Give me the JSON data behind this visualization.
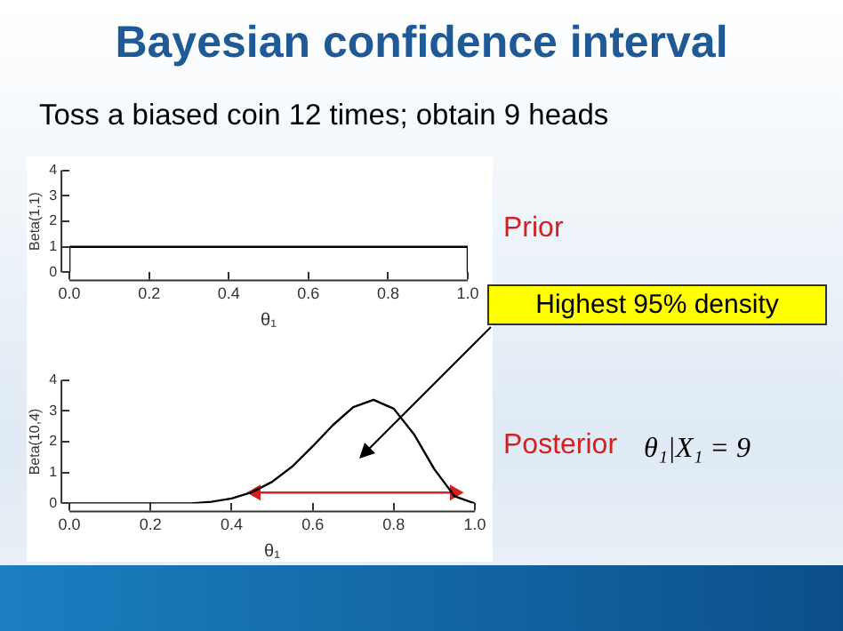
{
  "chart_data": [
    {
      "type": "line",
      "title": "Bayesian confidence interval",
      "subtitle": "Toss a biased coin 12 times; obtain 9 heads",
      "xlabel": "θ₁",
      "ylabel": "Beta(1,1)",
      "series": [
        {
          "color": "#000000",
          "x": [
            0,
            0,
            1,
            1
          ],
          "values": [
            0,
            1,
            1,
            0
          ]
        }
      ],
      "xlim": [
        0,
        1
      ],
      "xticks": [
        {
          "value": 0,
          "label": "0.0"
        },
        {
          "value": 0.2,
          "label": "0.2"
        },
        {
          "value": 0.4,
          "label": "0.4"
        },
        {
          "value": 0.6,
          "label": "0.6"
        },
        {
          "value": 0.8,
          "label": "0.8"
        },
        {
          "value": 1,
          "label": "1.0"
        }
      ],
      "ylim": [
        0,
        4
      ],
      "yticks": [
        0,
        1,
        2,
        3,
        4
      ],
      "grid": false,
      "legend": false,
      "annotations": [
        "Prior"
      ]
    },
    {
      "type": "line",
      "xlabel": "θ₁",
      "ylabel": "Beta(10,4)",
      "series": [
        {
          "color": "#000000",
          "x": [
            0,
            0.3,
            0.35,
            0.4,
            0.45,
            0.5,
            0.55,
            0.6,
            0.65,
            0.7,
            0.75,
            0.8,
            0.85,
            0.9,
            0.95,
            1
          ],
          "values": [
            0,
            0,
            0.05,
            0.16,
            0.36,
            0.7,
            1.2,
            1.85,
            2.54,
            3.12,
            3.36,
            3.07,
            2.24,
            1.11,
            0.23,
            0
          ]
        },
        {
          "color": "#d42020",
          "x": [
            0.46,
            0.95
          ],
          "values": [
            0.35,
            0.35
          ],
          "marker": "triangle"
        }
      ],
      "xlim": [
        0,
        1
      ],
      "xticks": [
        {
          "value": 0,
          "label": "0.0"
        },
        {
          "value": 0.2,
          "label": "0.2"
        },
        {
          "value": 0.4,
          "label": "0.4"
        },
        {
          "value": 0.6,
          "label": "0.6"
        },
        {
          "value": 0.8,
          "label": "0.8"
        },
        {
          "value": 1,
          "label": "1.0"
        }
      ],
      "ylim": [
        0,
        4
      ],
      "yticks": [
        0,
        1,
        2,
        3,
        4
      ],
      "grid": false,
      "legend": false,
      "annotations": [
        "Highest 95% density",
        "Posterior",
        "θ₁|X₁ = 9"
      ]
    }
  ]
}
